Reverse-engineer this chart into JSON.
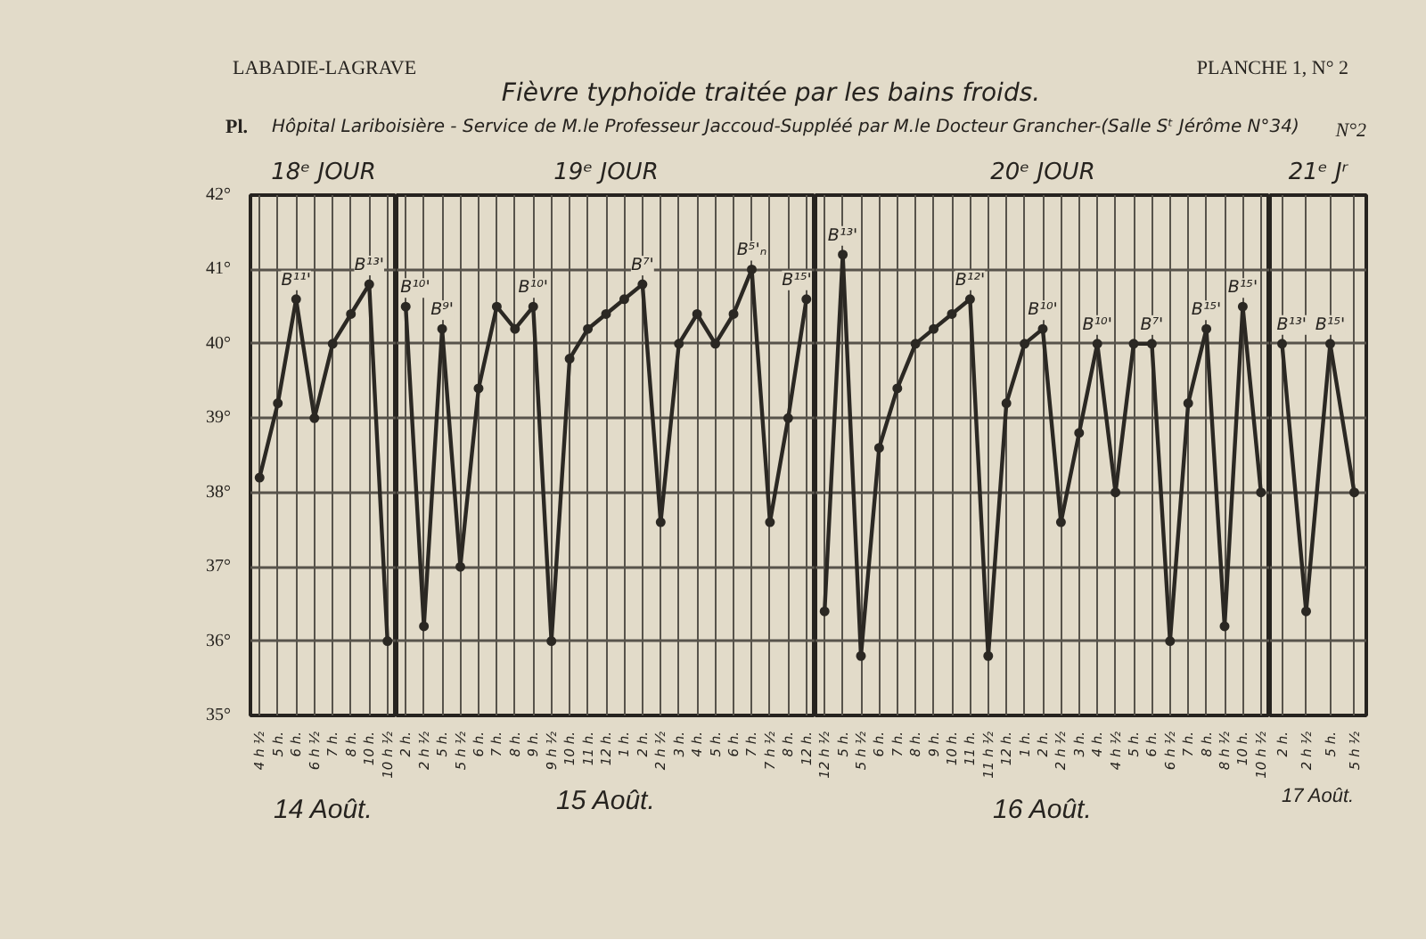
{
  "chart_data": [
    {
      "type": "other",
      "title": "Fièvre typhoïde traitée par les bains froids.",
      "subtitle": "Hôpital Lariboisière - Service de M.le Professeur Jaccoud-Suppléé par M.le Docteur Grancher-(Salle Sᵗ Jérôme N°34)",
      "annotations": [
        "LABADIE-LAGRAVE",
        "PLANCHE 1, N° 2",
        "Pl.",
        "N°2"
      ]
    },
    {
      "type": "line",
      "title": "18ᵉ JOUR",
      "xlabel": "14 Août.",
      "categories": [
        "4 h ½",
        "5 h.",
        "6 h.",
        "6 h ½",
        "7 h.",
        "8 h.",
        "10 h.",
        "10 h ½"
      ],
      "values": [
        38.2,
        39.2,
        40.6,
        39.0,
        40.0,
        40.4,
        40.8,
        36.0
      ],
      "value_labels": [
        null,
        null,
        "B¹¹'",
        null,
        null,
        null,
        "B¹³'",
        null
      ],
      "color": "#2b2823",
      "ylim": [
        35,
        42
      ],
      "yticks": [
        {
          "value": 35,
          "label": "35°"
        },
        {
          "value": 36,
          "label": "36°"
        },
        {
          "value": 37,
          "label": "37°"
        },
        {
          "value": 38,
          "label": "38°"
        },
        {
          "value": 39,
          "label": "39°"
        },
        {
          "value": 40,
          "label": "40°"
        },
        {
          "value": 41,
          "label": "41°"
        },
        {
          "value": 42,
          "label": "42°"
        }
      ],
      "grid": true,
      "marker": "circle",
      "line_style": "solid"
    },
    {
      "type": "line",
      "title": "19ᵉ JOUR",
      "xlabel": "15 Août.",
      "categories": [
        "2 h.",
        "2 h ½",
        "5 h.",
        "5 h ½",
        "6 h.",
        "7 h.",
        "8 h.",
        "9 h.",
        "9 h ½",
        "10 h.",
        "11 h.",
        "12 h.",
        "1 h.",
        "2 h.",
        "2 h ½",
        "3 h.",
        "4 h.",
        "5 h.",
        "6 h.",
        "7 h.",
        "7 h ½",
        "8 h.",
        "12 h."
      ],
      "values": [
        40.5,
        36.2,
        40.2,
        37.0,
        39.4,
        40.5,
        40.2,
        40.5,
        36.0,
        39.8,
        40.2,
        40.4,
        40.6,
        40.8,
        37.6,
        40.0,
        40.4,
        40.0,
        40.4,
        41.0,
        37.6,
        39.0,
        40.6
      ],
      "value_labels": [
        "B¹⁰'",
        null,
        "B⁹'",
        null,
        null,
        null,
        null,
        "B¹⁰'",
        null,
        null,
        null,
        null,
        null,
        "B⁷'",
        null,
        null,
        null,
        null,
        null,
        "B⁵'ₙ",
        null,
        null,
        "B¹⁵'"
      ],
      "color": "#2b2823",
      "ylim": [
        35,
        42
      ],
      "yticks": [
        35,
        36,
        37,
        38,
        39,
        40,
        41,
        42
      ],
      "tick_labels": "x",
      "grid": true,
      "marker": "circle",
      "line_style": "solid"
    },
    {
      "type": "line",
      "title": "20ᵉ JOUR",
      "xlabel": "16 Août.",
      "categories": [
        "12 h ½",
        "5 h.",
        "5 h ½",
        "6 h.",
        "7 h.",
        "8 h.",
        "9 h.",
        "10 h.",
        "11 h.",
        "11 h ½",
        "12 h.",
        "1 h.",
        "2 h.",
        "2 h ½",
        "3 h.",
        "4 h.",
        "4 h ½",
        "5 h.",
        "6 h.",
        "6 h ½",
        "7 h.",
        "8 h.",
        "8 h ½",
        "10 h.",
        "10 h ½"
      ],
      "values": [
        36.4,
        41.2,
        35.8,
        38.6,
        39.4,
        40.0,
        40.2,
        40.4,
        40.6,
        35.8,
        39.2,
        40.0,
        40.2,
        37.6,
        38.8,
        40.0,
        38.0,
        40.0,
        40.0,
        36.0,
        39.2,
        40.2,
        36.2,
        40.5,
        38.0
      ],
      "value_labels": [
        null,
        "B¹³'",
        null,
        null,
        null,
        null,
        null,
        null,
        "B¹²'",
        null,
        null,
        null,
        "B¹⁰'",
        null,
        null,
        "B¹⁰'",
        null,
        null,
        "B⁷'",
        null,
        null,
        "B¹⁵'",
        null,
        "B¹⁵'",
        null
      ],
      "color": "#2b2823",
      "ylim": [
        35,
        42
      ],
      "yticks": [
        35,
        36,
        37,
        38,
        39,
        40,
        41,
        42
      ],
      "tick_labels": "x",
      "grid": true,
      "marker": "circle",
      "line_style": "solid"
    },
    {
      "type": "line",
      "title": "21ᵉ Jʳ",
      "xlabel": "17 Août.",
      "categories": [
        "2 h.",
        "2 h ½",
        "5 h.",
        "5 h ½"
      ],
      "values": [
        40.0,
        36.4,
        40.0,
        38.0
      ],
      "value_labels": [
        "B¹³'",
        null,
        "B¹⁵'",
        null
      ],
      "color": "#2b2823",
      "ylim": [
        35,
        42
      ],
      "yticks": [
        35,
        36,
        37,
        38,
        39,
        40,
        41,
        42
      ],
      "tick_labels": "x",
      "grid": true,
      "marker": "circle",
      "line_style": "solid"
    }
  ]
}
